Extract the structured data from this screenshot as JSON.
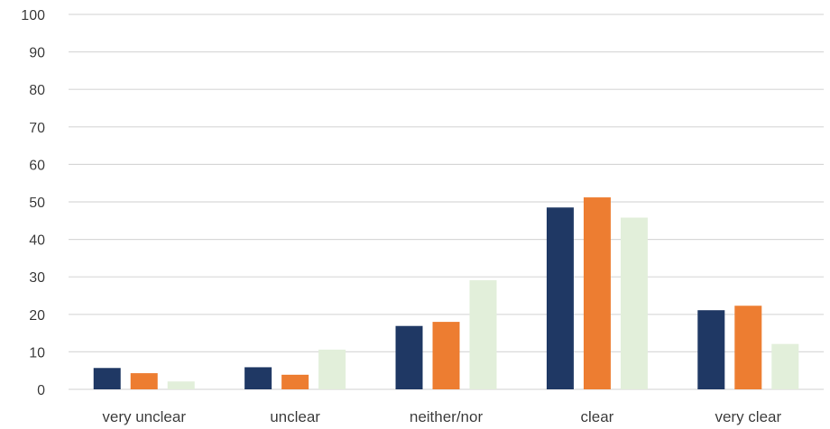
{
  "chart_data": {
    "type": "bar",
    "title": "",
    "xlabel": "",
    "ylabel": "",
    "ylim": [
      0,
      100
    ],
    "yticks": [
      0,
      10,
      20,
      30,
      40,
      50,
      60,
      70,
      80,
      90,
      100
    ],
    "grid": true,
    "legend": "none",
    "categories": [
      "very unclear",
      "unclear",
      "neither/nor",
      "clear",
      "very clear"
    ],
    "series": [
      {
        "color": "#1f3864",
        "values": [
          5.7,
          5.9,
          16.9,
          48.5,
          21.1
        ]
      },
      {
        "color": "#ed7d31",
        "values": [
          4.3,
          3.9,
          18.0,
          51.2,
          22.3
        ]
      },
      {
        "color": "#e2efda",
        "values": [
          2.1,
          10.6,
          29.1,
          45.8,
          12.1
        ]
      }
    ]
  }
}
